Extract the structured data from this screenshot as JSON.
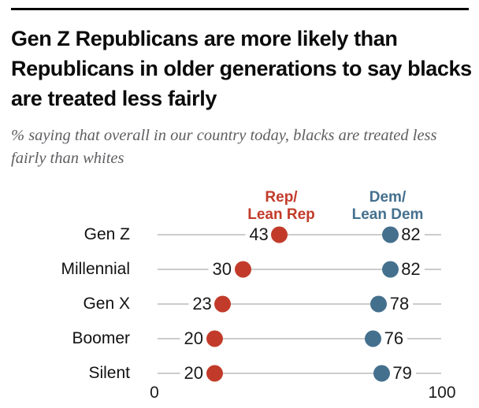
{
  "header": {
    "title": "Gen Z Republicans are more likely than Republicans in older generations to say blacks are treated less fairly",
    "subtitle": "% saying that overall in our country today, blacks are treated less fairly than whites"
  },
  "chart_data": {
    "type": "scatter",
    "variant": "connected-dot-plot",
    "title": "Gen Z Republicans are more likely than Republicans in older generations to say blacks are treated less fairly",
    "subtitle": "% saying that overall in our country today, blacks are treated less fairly than whites",
    "categories": [
      "Gen Z",
      "Millennial",
      "Gen X",
      "Boomer",
      "Silent"
    ],
    "series": [
      {
        "id": "rep",
        "name": "Rep/Lean Rep",
        "legend_lines": [
          "Rep/",
          "Lean Rep"
        ],
        "color": "#c23b2a",
        "label_side": "left",
        "values": [
          43,
          30,
          23,
          20,
          20
        ]
      },
      {
        "id": "dem",
        "name": "Dem/Lean Dem",
        "legend_lines": [
          "Dem/",
          "Lean Dem"
        ],
        "color": "#44708e",
        "label_side": "right",
        "values": [
          82,
          82,
          78,
          76,
          79
        ]
      }
    ],
    "xlim": [
      0,
      100
    ],
    "x_axis_labels": [
      "0",
      "100"
    ],
    "grid": false,
    "legend_position": "top-inline",
    "colors": {
      "line": "#cccccc",
      "text": "#1a1a1a",
      "subtitle": "#5e5f62"
    }
  }
}
